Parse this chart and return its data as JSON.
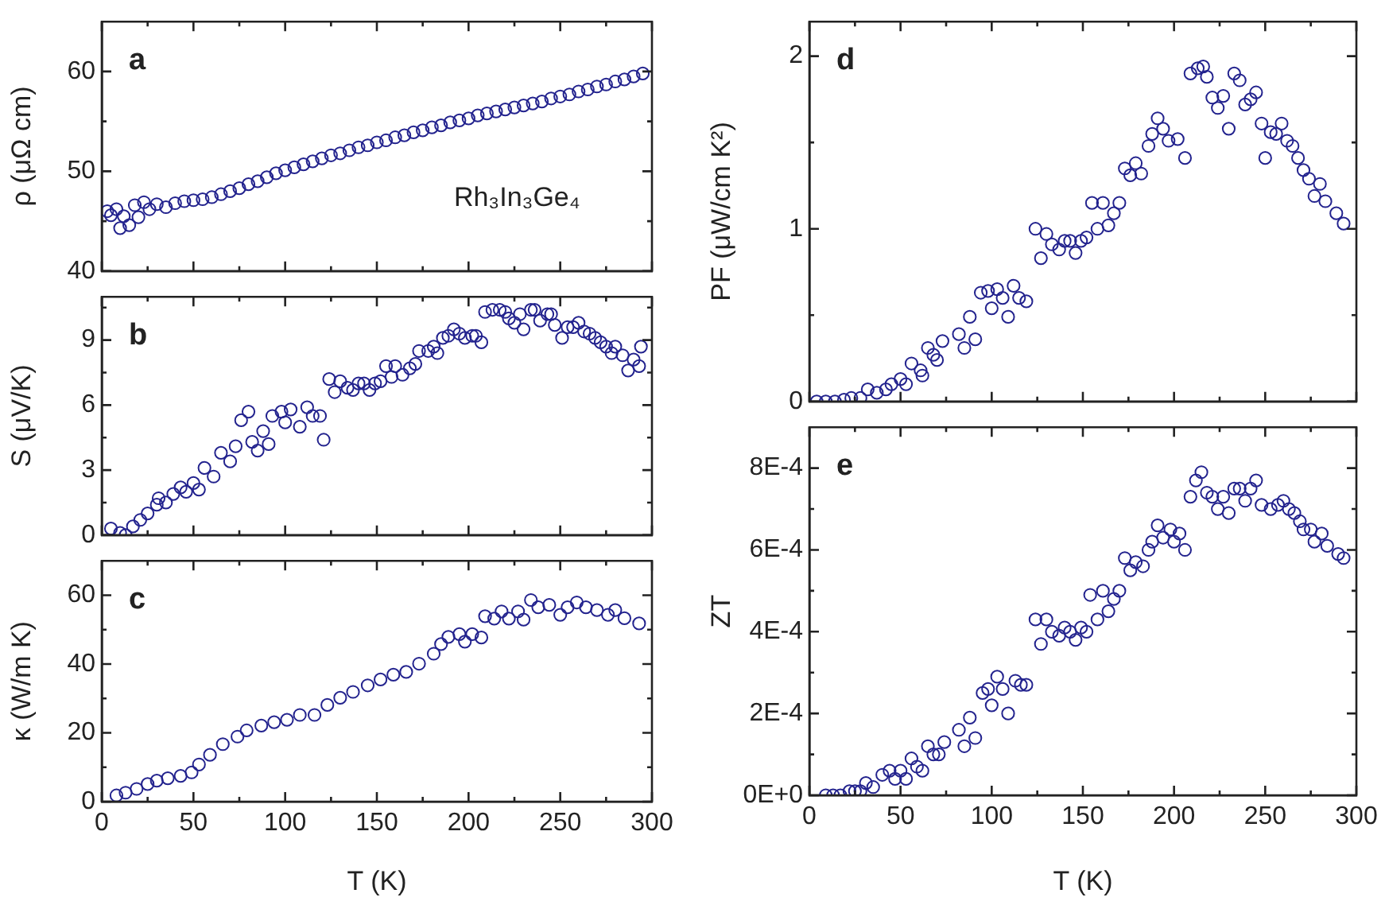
{
  "chart_data": [
    {
      "type": "scatter",
      "ylabel": "ρ (μΩ cm)",
      "annotations": [
        "a",
        "Rh₃In₃Ge₄"
      ],
      "marker": "circle",
      "tick_labels": "y",
      "xlim": [
        0,
        300
      ],
      "ylim": [
        40,
        65
      ],
      "xticks": [
        0,
        {
          "value": 25,
          "label": null
        },
        50,
        {
          "value": 75,
          "label": null
        },
        100,
        {
          "value": 125,
          "label": null
        },
        150,
        {
          "value": 175,
          "label": null
        },
        200,
        {
          "value": 225,
          "label": null
        },
        250,
        {
          "value": 275,
          "label": null
        },
        300
      ],
      "yticks": [
        40,
        {
          "value": 45,
          "label": null
        },
        50,
        {
          "value": 55,
          "label": null
        },
        60
      ],
      "x": [
        3,
        5,
        8,
        10,
        12,
        15,
        18,
        20,
        23,
        26,
        30,
        35,
        40,
        45,
        50,
        55,
        60,
        65,
        70,
        75,
        80,
        85,
        90,
        95,
        100,
        105,
        110,
        115,
        120,
        125,
        130,
        135,
        140,
        145,
        150,
        155,
        160,
        165,
        170,
        175,
        180,
        185,
        190,
        195,
        200,
        205,
        210,
        215,
        220,
        225,
        230,
        235,
        240,
        245,
        250,
        255,
        260,
        265,
        270,
        275,
        280,
        285,
        290,
        295
      ],
      "series": [
        {
          "color": "#23238e",
          "values": [
            46,
            45.6,
            46.2,
            44.3,
            45.5,
            44.6,
            46.6,
            45.4,
            46.9,
            46.2,
            46.7,
            46.4,
            46.8,
            47,
            47.1,
            47.2,
            47.4,
            47.7,
            48,
            48.3,
            48.7,
            49,
            49.4,
            49.8,
            50.1,
            50.4,
            50.7,
            51,
            51.3,
            51.6,
            51.8,
            52.1,
            52.4,
            52.6,
            52.9,
            53.1,
            53.4,
            53.6,
            53.9,
            54.1,
            54.4,
            54.6,
            54.9,
            55.1,
            55.3,
            55.6,
            55.8,
            56,
            56.2,
            56.4,
            56.6,
            56.8,
            57,
            57.3,
            57.5,
            57.7,
            58,
            58.2,
            58.5,
            58.7,
            59,
            59.2,
            59.5,
            59.8
          ]
        }
      ]
    },
    {
      "type": "scatter",
      "ylabel": "S (μV/K)",
      "annotations": [
        "b"
      ],
      "marker": "circle",
      "tick_labels": "y",
      "xlim": [
        0,
        300
      ],
      "ylim": [
        0,
        11
      ],
      "xticks": [
        0,
        {
          "value": 25,
          "label": null
        },
        50,
        {
          "value": 75,
          "label": null
        },
        100,
        {
          "value": 125,
          "label": null
        },
        150,
        {
          "value": 175,
          "label": null
        },
        200,
        {
          "value": 225,
          "label": null
        },
        250,
        {
          "value": 275,
          "label": null
        },
        300
      ],
      "yticks": [
        0,
        {
          "value": 1.5,
          "label": null
        },
        3,
        {
          "value": 4.5,
          "label": null
        },
        6,
        {
          "value": 7.5,
          "label": null
        },
        9,
        {
          "value": 10.5,
          "label": null
        }
      ],
      "x": [
        5,
        10,
        13,
        17,
        21,
        25,
        30,
        31,
        35,
        39,
        43,
        46,
        50,
        53,
        56,
        61,
        65,
        70,
        73,
        76,
        80,
        82,
        85,
        88,
        91,
        93,
        98,
        100,
        103,
        108,
        112,
        115,
        119,
        121,
        124,
        127,
        130,
        134,
        137,
        140,
        143,
        146,
        149,
        152,
        155,
        158,
        160,
        164,
        168,
        171,
        173,
        178,
        181,
        183,
        186,
        189,
        192,
        195,
        198,
        202,
        204,
        207,
        209,
        213,
        217,
        220,
        222,
        225,
        228,
        230,
        234,
        236,
        239,
        243,
        245,
        247,
        251,
        254,
        257,
        260,
        263,
        266,
        269,
        272,
        275,
        278,
        280,
        284,
        287,
        290,
        293,
        294
      ],
      "series": [
        {
          "color": "#23238e",
          "values": [
            0.3,
            0.1,
            0,
            0.4,
            0.7,
            1,
            1.4,
            1.7,
            1.5,
            1.9,
            2.2,
            2,
            2.4,
            2.1,
            3.1,
            2.7,
            3.8,
            3.4,
            4.1,
            5.3,
            5.7,
            4.3,
            3.9,
            4.8,
            4.2,
            5.5,
            5.7,
            5.2,
            5.8,
            5,
            5.9,
            5.5,
            5.5,
            4.4,
            7.2,
            6.6,
            7.1,
            6.8,
            6.7,
            7,
            7,
            6.7,
            7,
            7.1,
            7.8,
            7.3,
            7.8,
            7.4,
            7.7,
            7.9,
            8.5,
            8.5,
            8.7,
            8.4,
            9.1,
            9.2,
            9.5,
            9.3,
            9.1,
            9.2,
            9.2,
            8.9,
            10.3,
            10.4,
            10.4,
            10.3,
            10,
            9.8,
            10.2,
            9.5,
            10.4,
            10.4,
            9.9,
            10.2,
            10.2,
            9.7,
            9.1,
            9.6,
            9.6,
            9.8,
            9.4,
            9.3,
            9.1,
            8.9,
            8.7,
            8.4,
            8.7,
            8.3,
            7.6,
            8.1,
            7.8,
            8.7
          ]
        }
      ]
    },
    {
      "type": "scatter",
      "xlabel": "T (K)",
      "ylabel": "κ (W/m K)",
      "annotations": [
        "c"
      ],
      "marker": "circle",
      "xlim": [
        0,
        300
      ],
      "ylim": [
        0,
        70
      ],
      "xticks": [
        0,
        {
          "value": 25,
          "label": null
        },
        50,
        {
          "value": 75,
          "label": null
        },
        100,
        {
          "value": 125,
          "label": null
        },
        150,
        {
          "value": 175,
          "label": null
        },
        200,
        {
          "value": 225,
          "label": null
        },
        250,
        {
          "value": 275,
          "label": null
        },
        300
      ],
      "yticks": [
        0,
        {
          "value": 10,
          "label": null
        },
        20,
        {
          "value": 30,
          "label": null
        },
        40,
        {
          "value": 50,
          "label": null
        },
        60
      ],
      "x": [
        8,
        13,
        19,
        25,
        30,
        36,
        43,
        49,
        53,
        59,
        66,
        74,
        79,
        87,
        94,
        101,
        108,
        116,
        123,
        130,
        137,
        145,
        152,
        159,
        166,
        173,
        181,
        185,
        189,
        195,
        198,
        202,
        207,
        209,
        214,
        218,
        222,
        227,
        230,
        234,
        238,
        244,
        250,
        254,
        259,
        264,
        270,
        276,
        280,
        285,
        293
      ],
      "series": [
        {
          "color": "#23238e",
          "values": [
            1.8,
            2.6,
            3.7,
            5.1,
            6.1,
            6.8,
            7.5,
            8.5,
            10.8,
            13.6,
            16.7,
            18.9,
            20.7,
            22.1,
            23.1,
            23.8,
            25.2,
            25.2,
            28.1,
            30.2,
            31.9,
            33.8,
            35.5,
            36.9,
            37.7,
            40.1,
            43,
            45.8,
            47.9,
            48.7,
            46.5,
            48.7,
            47.7,
            53.9,
            53.2,
            55.3,
            53.2,
            55.3,
            52.9,
            58.6,
            56.5,
            57.2,
            54.3,
            56.5,
            57.9,
            56.5,
            55.7,
            54.3,
            55.7,
            53.3,
            51.8
          ]
        }
      ]
    },
    {
      "type": "scatter",
      "ylabel": "PF (μW/cm K²)",
      "annotations": [
        "d"
      ],
      "marker": "circle",
      "tick_labels": "y",
      "xlim": [
        0,
        300
      ],
      "ylim": [
        0,
        2.2
      ],
      "xticks": [
        0,
        {
          "value": 25,
          "label": null
        },
        50,
        {
          "value": 75,
          "label": null
        },
        100,
        {
          "value": 125,
          "label": null
        },
        150,
        {
          "value": 175,
          "label": null
        },
        200,
        {
          "value": 225,
          "label": null
        },
        250,
        {
          "value": 275,
          "label": null
        },
        300
      ],
      "yticks": [
        0,
        {
          "value": 0.5,
          "label": null
        },
        1,
        {
          "value": 1.5,
          "label": null
        },
        2
      ],
      "x": [
        4,
        9,
        14,
        19,
        23,
        28,
        32,
        37,
        42,
        45,
        50,
        53,
        56,
        61,
        62,
        65,
        68,
        70,
        73,
        82,
        85,
        88,
        91,
        94,
        98,
        100,
        103,
        106,
        109,
        112,
        115,
        119,
        124,
        127,
        130,
        133,
        137,
        140,
        143,
        146,
        149,
        152,
        155,
        158,
        161,
        164,
        167,
        170,
        173,
        176,
        179,
        182,
        186,
        188,
        191,
        194,
        197,
        202,
        206,
        209,
        213,
        216,
        218,
        221,
        224,
        227,
        230,
        233,
        236,
        239,
        242,
        245,
        248,
        250,
        253,
        256,
        259,
        262,
        265,
        268,
        271,
        274,
        277,
        280,
        283,
        289,
        293
      ],
      "series": [
        {
          "color": "#23238e",
          "values": [
            0,
            0,
            0,
            0.01,
            0.02,
            0.02,
            0.07,
            0.05,
            0.07,
            0.1,
            0.13,
            0.1,
            0.22,
            0.18,
            0.15,
            0.31,
            0.27,
            0.24,
            0.35,
            0.39,
            0.31,
            0.49,
            0.36,
            0.63,
            0.64,
            0.54,
            0.65,
            0.6,
            0.49,
            0.67,
            0.6,
            0.58,
            1,
            0.83,
            0.97,
            0.91,
            0.88,
            0.93,
            0.93,
            0.86,
            0.93,
            0.95,
            1.15,
            1,
            1.15,
            1.02,
            1.09,
            1.15,
            1.35,
            1.31,
            1.38,
            1.32,
            1.48,
            1.55,
            1.64,
            1.58,
            1.51,
            1.52,
            1.41,
            1.9,
            1.93,
            1.94,
            1.88,
            1.76,
            1.7,
            1.77,
            1.58,
            1.9,
            1.86,
            1.72,
            1.75,
            1.79,
            1.61,
            1.41,
            1.56,
            1.55,
            1.61,
            1.51,
            1.48,
            1.41,
            1.34,
            1.29,
            1.19,
            1.26,
            1.16,
            1.09,
            1.03
          ]
        }
      ]
    },
    {
      "type": "scatter",
      "xlabel": "T (K)",
      "ylabel": "ZT",
      "annotations": [
        "e"
      ],
      "marker": "circle",
      "xlim": [
        0,
        300
      ],
      "ylim": [
        0,
        0.0009
      ],
      "xticks": [
        0,
        {
          "value": 25,
          "label": null
        },
        50,
        {
          "value": 75,
          "label": null
        },
        100,
        {
          "value": 125,
          "label": null
        },
        150,
        {
          "value": 175,
          "label": null
        },
        200,
        {
          "value": 225,
          "label": null
        },
        250,
        {
          "value": 275,
          "label": null
        },
        300
      ],
      "yticks": [
        {
          "value": 0,
          "label": "0E+0"
        },
        {
          "value": 0.0001,
          "label": null
        },
        {
          "value": 0.0002,
          "label": "2E-4"
        },
        {
          "value": 0.0003,
          "label": null
        },
        {
          "value": 0.0004,
          "label": "4E-4"
        },
        {
          "value": 0.0005,
          "label": null
        },
        {
          "value": 0.0006,
          "label": "6E-4"
        },
        {
          "value": 0.0007,
          "label": null
        },
        {
          "value": 0.0008,
          "label": "8E-4"
        }
      ],
      "x": [
        9,
        13,
        17,
        22,
        25,
        28,
        31,
        35,
        40,
        44,
        47,
        50,
        53,
        56,
        59,
        62,
        65,
        68,
        71,
        74,
        82,
        85,
        88,
        91,
        95,
        98,
        100,
        103,
        106,
        109,
        113,
        116,
        119,
        124,
        127,
        130,
        133,
        137,
        140,
        143,
        146,
        149,
        152,
        154,
        158,
        161,
        164,
        167,
        170,
        173,
        176,
        179,
        183,
        186,
        188,
        191,
        194,
        198,
        200,
        203,
        206,
        209,
        212,
        215,
        218,
        221,
        224,
        227,
        230,
        233,
        236,
        239,
        242,
        245,
        248,
        253,
        257,
        260,
        263,
        266,
        269,
        271,
        275,
        277,
        281,
        284,
        290,
        293
      ],
      "series": [
        {
          "color": "#23238e",
          "values": [
            0,
            0,
            0,
            1e-05,
            1e-05,
            1e-05,
            3e-05,
            2e-05,
            5e-05,
            6e-05,
            4e-05,
            6e-05,
            4e-05,
            9e-05,
            7e-05,
            6e-05,
            0.00012,
            0.0001,
            0.0001,
            0.00013,
            0.00016,
            0.00012,
            0.00019,
            0.00014,
            0.00025,
            0.00026,
            0.00022,
            0.00029,
            0.00026,
            0.0002,
            0.00028,
            0.00027,
            0.00027,
            0.00043,
            0.00037,
            0.00043,
            0.0004,
            0.00039,
            0.00041,
            0.0004,
            0.00038,
            0.00041,
            0.0004,
            0.00049,
            0.00043,
            0.0005,
            0.00045,
            0.00048,
            0.0005,
            0.00058,
            0.00055,
            0.00057,
            0.00056,
            0.0006,
            0.00062,
            0.00066,
            0.00063,
            0.00065,
            0.00062,
            0.00064,
            0.0006,
            0.00073,
            0.00077,
            0.00079,
            0.00074,
            0.00073,
            0.0007,
            0.00073,
            0.00069,
            0.00075,
            0.00075,
            0.00072,
            0.00075,
            0.00077,
            0.00071,
            0.0007,
            0.00071,
            0.00072,
            0.0007,
            0.00069,
            0.00067,
            0.00065,
            0.00065,
            0.00062,
            0.00064,
            0.00061,
            0.00059,
            0.00058
          ]
        }
      ]
    }
  ]
}
